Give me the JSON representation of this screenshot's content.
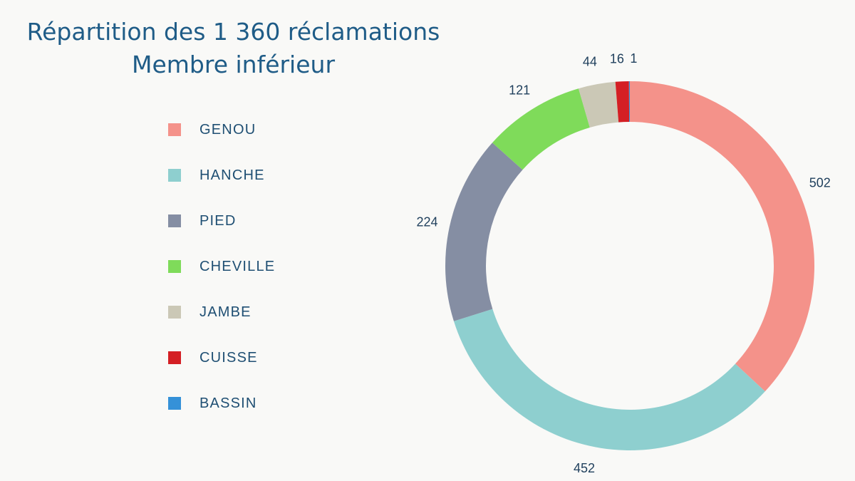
{
  "chart_data": {
    "type": "pie",
    "variant": "donut",
    "title_lines": [
      "Répartition des 1 360 réclamations",
      "Membre inférieur"
    ],
    "legend_position": "left",
    "slices": [
      {
        "label": "GENOU",
        "value": 502,
        "value_label": "502",
        "color": "#f4928a"
      },
      {
        "label": "HANCHE",
        "value": 452,
        "value_label": "452",
        "color": "#8ecfcf"
      },
      {
        "label": "PIED",
        "value": 224,
        "value_label": "224",
        "color": "#858ea3"
      },
      {
        "label": "CHEVILLE",
        "value": 121,
        "value_label": "121",
        "color": "#7fdb5a"
      },
      {
        "label": "JAMBE",
        "value": 44,
        "value_label": "44",
        "color": "#cbc8b6"
      },
      {
        "label": "CUISSE",
        "value": 16,
        "value_label": "16",
        "color": "#d41f24"
      },
      {
        "label": "BASSIN",
        "value": 1,
        "value_label": "1",
        "color": "#3591d8"
      }
    ]
  }
}
